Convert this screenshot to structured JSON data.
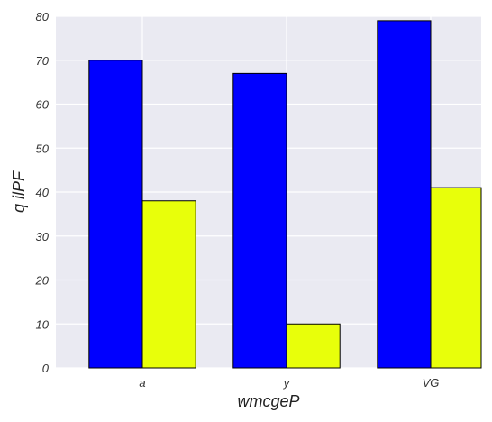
{
  "chart_data": {
    "type": "bar",
    "categories": [
      "a",
      "y",
      "VG"
    ],
    "series": [
      {
        "values": [
          70,
          67,
          79
        ],
        "color": "#0000ff"
      },
      {
        "values": [
          38,
          10,
          41
        ],
        "color": "#e8ff0a"
      }
    ],
    "title": "",
    "xlabel": "wmcgeP",
    "ylabel": "q ilPF",
    "ylim": [
      0,
      80
    ],
    "yticks": [
      0,
      10,
      20,
      30,
      40,
      50,
      60,
      70,
      80
    ],
    "grid": true,
    "legend": "none"
  },
  "style": {
    "plot_background": "#eaeaf2",
    "grid_color": "#ffffff",
    "bar_edge": "#000000"
  }
}
